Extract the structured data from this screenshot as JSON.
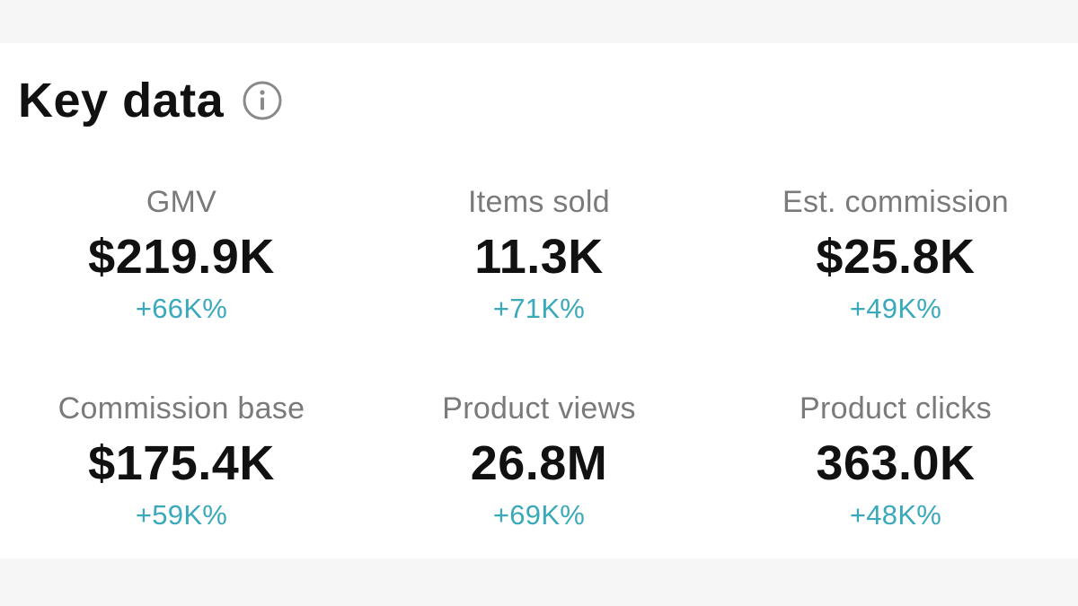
{
  "header": {
    "title": "Key data"
  },
  "metrics": [
    {
      "label": "GMV",
      "value": "$219.9K",
      "change": "+66K%"
    },
    {
      "label": "Items sold",
      "value": "11.3K",
      "change": "+71K%"
    },
    {
      "label": "Est. commission",
      "value": "$25.8K",
      "change": "+49K%"
    },
    {
      "label": "Commission base",
      "value": "$175.4K",
      "change": "+59K%"
    },
    {
      "label": "Product views",
      "value": "26.8M",
      "change": "+69K%"
    },
    {
      "label": "Product clicks",
      "value": "363.0K",
      "change": "+48K%"
    }
  ],
  "icons": {
    "info": "info-icon"
  },
  "colors": {
    "title": "#111111",
    "label": "#7a7a7a",
    "value": "#111111",
    "change_positive": "#3aa9bb",
    "background": "#ffffff",
    "band": "#f6f6f6"
  }
}
